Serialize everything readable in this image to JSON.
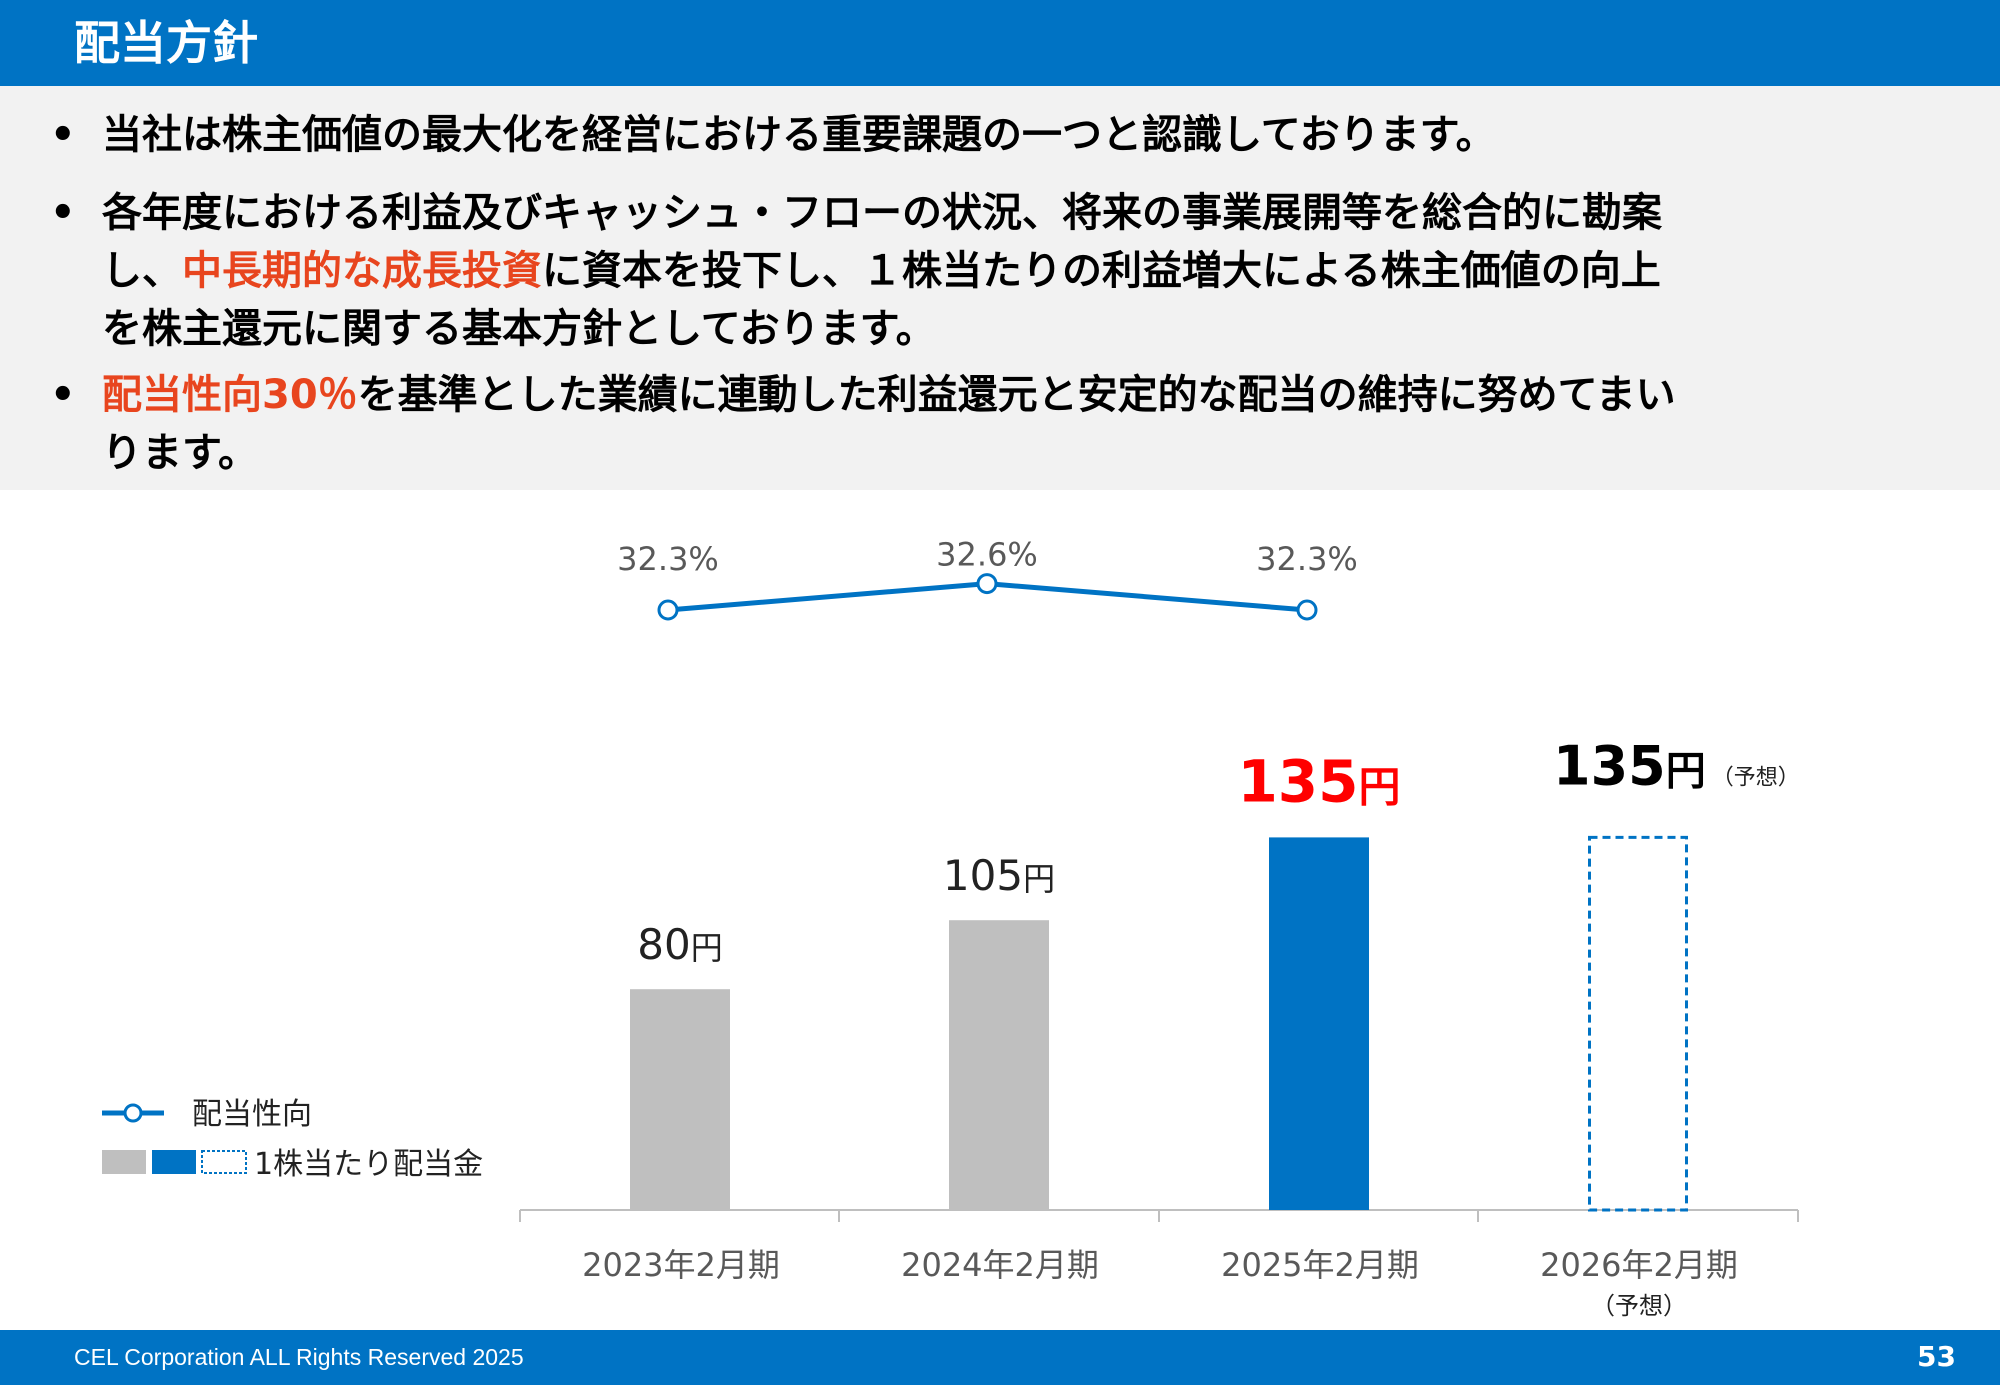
{
  "header": {
    "title": "配当方針"
  },
  "bullets": [
    {
      "text_lines": [
        "当社は株主価値の最大化を経営における重要課題の一つと認識しております。"
      ]
    },
    {
      "text_lines": [
        "各年度における利益及びキャッシュ・フローの状況、将来の事業展開等を総合的に勘案"
      ],
      "line2_pre": "し、",
      "line2_highlight": "中長期的な成長投資",
      "line2_post": "に資本を投下し、１株当たりの利益増大による株主価値の向上",
      "line3": "を株主還元に関する基本方針としております。"
    },
    {
      "highlight": "配当性向30％",
      "line1_post": "を基準とした業績に連動した利益還元と安定的な配当の維持に努めてまい",
      "line2": "ります。"
    }
  ],
  "chart_data": {
    "type": "bar",
    "categories": [
      "2023年2月期",
      "2024年2月期",
      "2025年2月期",
      "2026年2月期"
    ],
    "category_sublabels": [
      "",
      "",
      "",
      "（予想）"
    ],
    "series": [
      {
        "name": "1株当たり配当金",
        "unit": "円",
        "values": [
          80,
          105,
          135,
          135
        ],
        "value_labels": [
          "80",
          "105",
          "135",
          "135"
        ],
        "styles": [
          "past",
          "past",
          "current",
          "forecast"
        ],
        "forecast_note": "（予想）"
      },
      {
        "name": "配当性向",
        "type": "line",
        "values": [
          32.3,
          32.6,
          32.3,
          null
        ],
        "value_labels": [
          "32.3%",
          "32.6%",
          "32.3%"
        ]
      }
    ],
    "ylim": [
      0,
      150
    ],
    "colors": {
      "past": "#BFBFBF",
      "current": "#0073C4",
      "forecast": "#0073C4",
      "line": "#0073C4",
      "current_label": "#FF0000"
    }
  },
  "footer": {
    "copyright": "CEL Corporation ALL Rights Reserved 2025",
    "page": "53"
  }
}
